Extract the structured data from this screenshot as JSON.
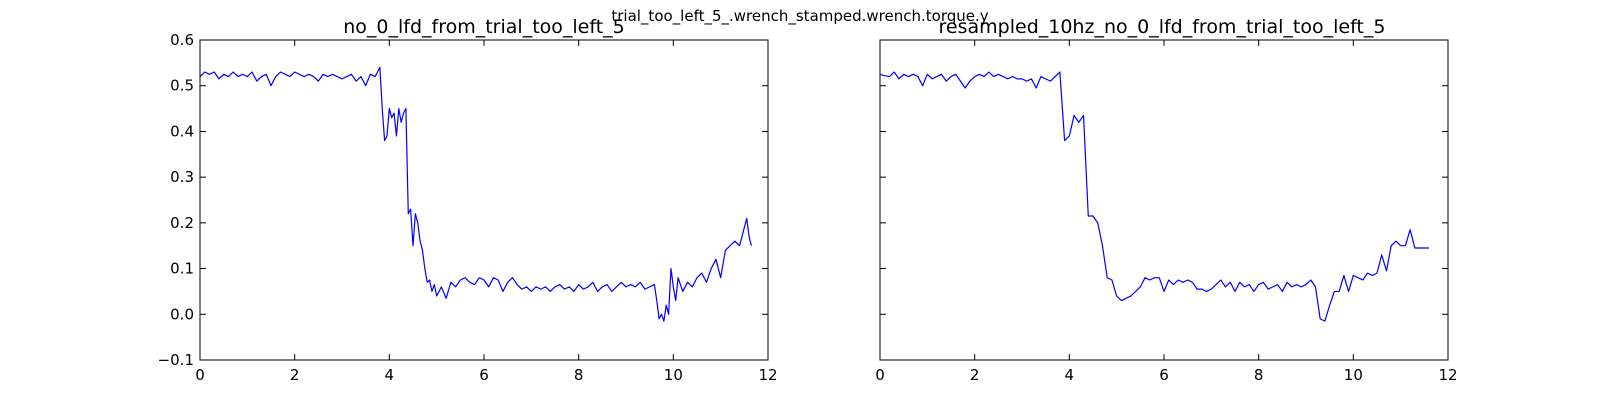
{
  "figure": {
    "suptitle": "trial_too_left_5_.wrench_stamped.wrench.torque.y"
  },
  "chart_data": [
    {
      "type": "line",
      "title": "no_0_lfd_from_trial_too_left_5",
      "xlabel": "",
      "ylabel": "",
      "xlim": [
        0,
        12
      ],
      "ylim": [
        -0.1,
        0.6
      ],
      "xticks": [
        0,
        2,
        4,
        6,
        8,
        10,
        12
      ],
      "yticks": [
        -0.1,
        0.0,
        0.1,
        0.2,
        0.3,
        0.4,
        0.5,
        0.6
      ],
      "xtick_labels": [
        "0",
        "2",
        "4",
        "6",
        "8",
        "10",
        "12"
      ],
      "ytick_labels": [
        "−0.1",
        "0.0",
        "0.1",
        "0.2",
        "0.3",
        "0.4",
        "0.5",
        "0.6"
      ],
      "grid": false,
      "line_color": "#0000ff",
      "series": [
        {
          "x": [
            0.0,
            0.1,
            0.2,
            0.3,
            0.4,
            0.5,
            0.6,
            0.7,
            0.8,
            0.9,
            1.0,
            1.1,
            1.2,
            1.3,
            1.4,
            1.5,
            1.6,
            1.7,
            1.8,
            1.9,
            2.0,
            2.1,
            2.2,
            2.3,
            2.4,
            2.5,
            2.6,
            2.7,
            2.8,
            2.9,
            3.0,
            3.1,
            3.2,
            3.3,
            3.4,
            3.5,
            3.6,
            3.7,
            3.75,
            3.8,
            3.85,
            3.9,
            3.95,
            4.0,
            4.05,
            4.1,
            4.15,
            4.2,
            4.25,
            4.3,
            4.35,
            4.4,
            4.45,
            4.5,
            4.55,
            4.6,
            4.65,
            4.7,
            4.75,
            4.8,
            4.85,
            4.9,
            4.95,
            5.0,
            5.1,
            5.2,
            5.3,
            5.4,
            5.5,
            5.6,
            5.7,
            5.8,
            5.9,
            6.0,
            6.1,
            6.2,
            6.3,
            6.4,
            6.5,
            6.6,
            6.7,
            6.8,
            6.9,
            7.0,
            7.1,
            7.2,
            7.3,
            7.4,
            7.5,
            7.6,
            7.7,
            7.8,
            7.9,
            8.0,
            8.1,
            8.2,
            8.3,
            8.4,
            8.5,
            8.6,
            8.7,
            8.8,
            8.9,
            9.0,
            9.1,
            9.2,
            9.3,
            9.4,
            9.5,
            9.6,
            9.65,
            9.7,
            9.75,
            9.8,
            9.85,
            9.9,
            9.95,
            10.0,
            10.05,
            10.1,
            10.2,
            10.3,
            10.4,
            10.5,
            10.6,
            10.7,
            10.8,
            10.9,
            11.0,
            11.1,
            11.2,
            11.3,
            11.4,
            11.5,
            11.55,
            11.6,
            11.65
          ],
          "values": [
            0.52,
            0.53,
            0.525,
            0.53,
            0.515,
            0.525,
            0.52,
            0.53,
            0.52,
            0.525,
            0.52,
            0.53,
            0.51,
            0.52,
            0.525,
            0.5,
            0.52,
            0.53,
            0.525,
            0.52,
            0.53,
            0.525,
            0.52,
            0.525,
            0.52,
            0.51,
            0.525,
            0.52,
            0.525,
            0.52,
            0.515,
            0.52,
            0.525,
            0.51,
            0.52,
            0.5,
            0.525,
            0.52,
            0.53,
            0.54,
            0.45,
            0.38,
            0.39,
            0.45,
            0.43,
            0.44,
            0.39,
            0.45,
            0.42,
            0.44,
            0.45,
            0.22,
            0.23,
            0.15,
            0.22,
            0.2,
            0.16,
            0.14,
            0.1,
            0.07,
            0.075,
            0.05,
            0.065,
            0.04,
            0.06,
            0.035,
            0.07,
            0.06,
            0.075,
            0.08,
            0.07,
            0.065,
            0.08,
            0.075,
            0.06,
            0.08,
            0.075,
            0.05,
            0.07,
            0.08,
            0.065,
            0.055,
            0.06,
            0.05,
            0.06,
            0.055,
            0.06,
            0.05,
            0.06,
            0.065,
            0.055,
            0.06,
            0.05,
            0.065,
            0.055,
            0.06,
            0.07,
            0.05,
            0.06,
            0.065,
            0.05,
            0.06,
            0.07,
            0.06,
            0.065,
            0.06,
            0.07,
            0.055,
            0.06,
            0.065,
            0.03,
            -0.01,
            0.0,
            -0.015,
            0.02,
            0.0,
            0.1,
            0.06,
            0.03,
            0.08,
            0.05,
            0.07,
            0.06,
            0.08,
            0.09,
            0.07,
            0.1,
            0.12,
            0.08,
            0.14,
            0.15,
            0.16,
            0.15,
            0.19,
            0.21,
            0.17,
            0.15
          ]
        }
      ]
    },
    {
      "type": "line",
      "title": "resampled_10hz_no_0_lfd_from_trial_too_left_5",
      "xlabel": "",
      "ylabel": "",
      "xlim": [
        0,
        12
      ],
      "ylim": [
        -0.1,
        0.6
      ],
      "xticks": [
        0,
        2,
        4,
        6,
        8,
        10,
        12
      ],
      "yticks": [
        -0.1,
        0.0,
        0.1,
        0.2,
        0.3,
        0.4,
        0.5,
        0.6
      ],
      "xtick_labels": [
        "0",
        "2",
        "4",
        "6",
        "8",
        "10",
        "12"
      ],
      "ytick_labels": [],
      "grid": false,
      "line_color": "#0000ff",
      "series": [
        {
          "x": [
            0.0,
            0.1,
            0.2,
            0.3,
            0.4,
            0.5,
            0.6,
            0.7,
            0.8,
            0.9,
            1.0,
            1.1,
            1.2,
            1.3,
            1.4,
            1.5,
            1.6,
            1.7,
            1.8,
            1.9,
            2.0,
            2.1,
            2.2,
            2.3,
            2.4,
            2.5,
            2.6,
            2.7,
            2.8,
            2.9,
            3.0,
            3.1,
            3.2,
            3.3,
            3.4,
            3.5,
            3.6,
            3.7,
            3.8,
            3.9,
            4.0,
            4.1,
            4.2,
            4.3,
            4.4,
            4.5,
            4.6,
            4.7,
            4.8,
            4.9,
            5.0,
            5.1,
            5.2,
            5.3,
            5.4,
            5.5,
            5.6,
            5.7,
            5.8,
            5.9,
            6.0,
            6.1,
            6.2,
            6.3,
            6.4,
            6.5,
            6.6,
            6.7,
            6.8,
            6.9,
            7.0,
            7.1,
            7.2,
            7.3,
            7.4,
            7.5,
            7.6,
            7.7,
            7.8,
            7.9,
            8.0,
            8.1,
            8.2,
            8.3,
            8.4,
            8.5,
            8.6,
            8.7,
            8.8,
            8.9,
            9.0,
            9.1,
            9.2,
            9.3,
            9.4,
            9.5,
            9.6,
            9.7,
            9.8,
            9.9,
            10.0,
            10.1,
            10.2,
            10.3,
            10.4,
            10.5,
            10.6,
            10.7,
            10.8,
            10.9,
            11.0,
            11.1,
            11.2,
            11.3,
            11.4,
            11.5,
            11.6
          ],
          "values": [
            0.525,
            0.522,
            0.52,
            0.53,
            0.515,
            0.525,
            0.52,
            0.525,
            0.52,
            0.5,
            0.525,
            0.515,
            0.52,
            0.525,
            0.51,
            0.52,
            0.525,
            0.51,
            0.495,
            0.51,
            0.52,
            0.525,
            0.52,
            0.53,
            0.52,
            0.525,
            0.52,
            0.515,
            0.52,
            0.515,
            0.515,
            0.51,
            0.515,
            0.495,
            0.52,
            0.515,
            0.51,
            0.52,
            0.53,
            0.38,
            0.39,
            0.435,
            0.42,
            0.435,
            0.215,
            0.215,
            0.2,
            0.15,
            0.08,
            0.075,
            0.04,
            0.03,
            0.035,
            0.04,
            0.05,
            0.06,
            0.08,
            0.075,
            0.08,
            0.08,
            0.05,
            0.075,
            0.065,
            0.075,
            0.07,
            0.075,
            0.07,
            0.055,
            0.055,
            0.05,
            0.055,
            0.065,
            0.075,
            0.06,
            0.07,
            0.05,
            0.07,
            0.06,
            0.065,
            0.05,
            0.065,
            0.07,
            0.055,
            0.06,
            0.065,
            0.05,
            0.07,
            0.06,
            0.065,
            0.06,
            0.065,
            0.075,
            0.06,
            -0.01,
            -0.015,
            0.02,
            0.05,
            0.05,
            0.085,
            0.05,
            0.085,
            0.08,
            0.075,
            0.09,
            0.085,
            0.09,
            0.13,
            0.095,
            0.15,
            0.16,
            0.15,
            0.15,
            0.185,
            0.145,
            0.145,
            0.145,
            0.145
          ]
        }
      ]
    }
  ]
}
